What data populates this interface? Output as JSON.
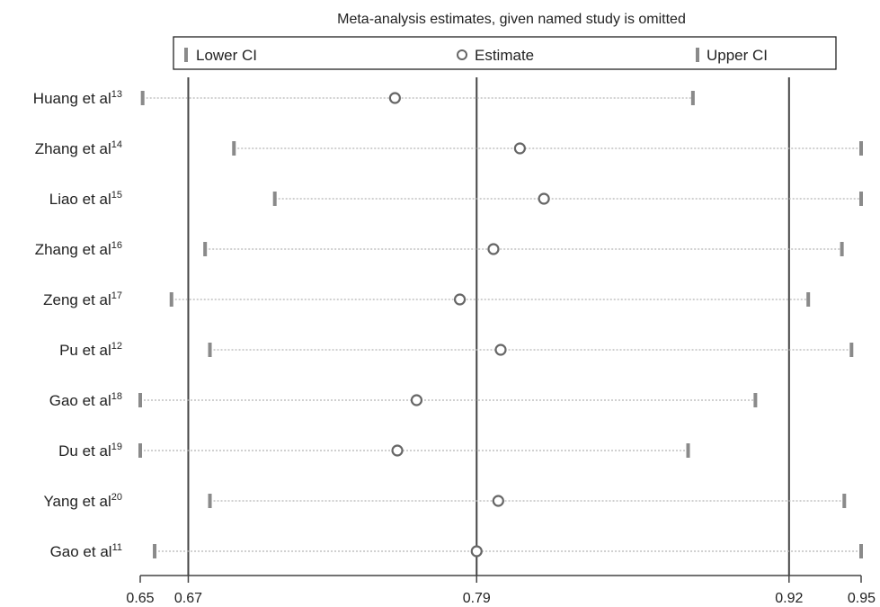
{
  "chart_data": {
    "type": "scatter",
    "title": "Meta-analysis estimates, given named study is omitted",
    "legend": {
      "placement": "top",
      "entries": [
        {
          "label": "Lower CI",
          "marker": "bar"
        },
        {
          "label": "Estimate",
          "marker": "circle"
        },
        {
          "label": "Upper CI",
          "marker": "bar"
        }
      ]
    },
    "xlim": [
      0.65,
      0.95
    ],
    "x_ticks": [
      {
        "value": 0.65,
        "label": "0.65"
      },
      {
        "value": 0.67,
        "label": "0.67"
      },
      {
        "value": 0.79,
        "label": "0.79"
      },
      {
        "value": 0.92,
        "label": "0.92"
      },
      {
        "value": 0.95,
        "label": "0.95"
      }
    ],
    "reference_lines": [
      0.67,
      0.79,
      0.92
    ],
    "studies": [
      {
        "name": "Huang et al",
        "ref": "13",
        "lower": 0.651,
        "estimate": 0.756,
        "upper": 0.88
      },
      {
        "name": "Zhang et al",
        "ref": "14",
        "lower": 0.689,
        "estimate": 0.808,
        "upper": 0.95
      },
      {
        "name": "Liao et al",
        "ref": "15",
        "lower": 0.706,
        "estimate": 0.818,
        "upper": 0.95
      },
      {
        "name": "Zhang et al",
        "ref": "16",
        "lower": 0.677,
        "estimate": 0.797,
        "upper": 0.942
      },
      {
        "name": "Zeng et al",
        "ref": "17",
        "lower": 0.663,
        "estimate": 0.783,
        "upper": 0.928
      },
      {
        "name": "Pu et al",
        "ref": "12",
        "lower": 0.679,
        "estimate": 0.8,
        "upper": 0.946
      },
      {
        "name": "Gao et al",
        "ref": "18",
        "lower": 0.65,
        "estimate": 0.765,
        "upper": 0.906
      },
      {
        "name": "Du et al",
        "ref": "19",
        "lower": 0.65,
        "estimate": 0.757,
        "upper": 0.878
      },
      {
        "name": "Yang et al",
        "ref": "20",
        "lower": 0.679,
        "estimate": 0.799,
        "upper": 0.943
      },
      {
        "name": "Gao et al",
        "ref": "11",
        "lower": 0.656,
        "estimate": 0.79,
        "upper": 0.95
      }
    ],
    "colors": {
      "ci_bar": "#8a8a8a",
      "estimate": "#666666",
      "dotted_line": "#b5b5b5",
      "reference_line": "#444444",
      "axis": "#444444"
    }
  }
}
